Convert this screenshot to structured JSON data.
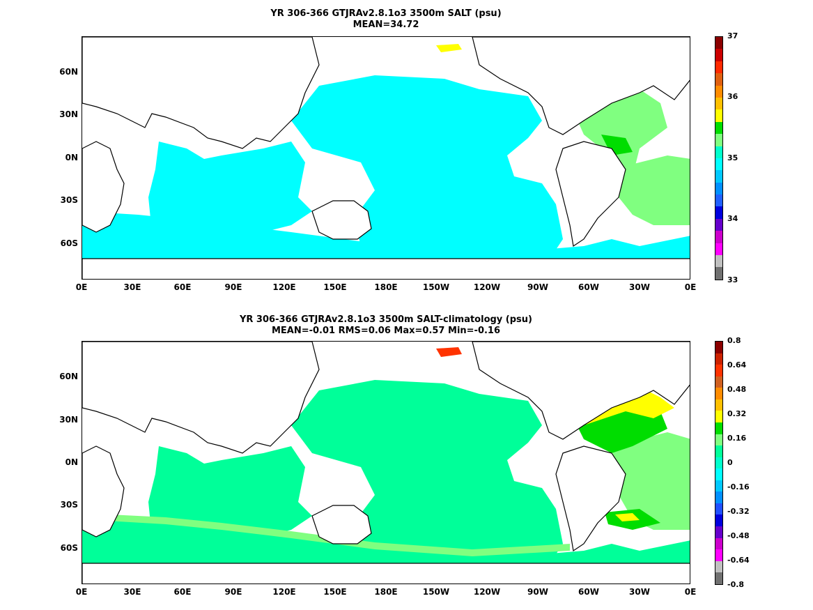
{
  "panels": [
    {
      "title_line1": "YR 306-366 GTJRAv2.8.1o3 3500m SALT (psu)",
      "title_line2": "MEAN=34.72",
      "lat_ticks": [
        "60N",
        "30N",
        "0N",
        "30S",
        "60S"
      ],
      "lon_ticks": [
        "0E",
        "30E",
        "60E",
        "90E",
        "120E",
        "150E",
        "180E",
        "150W",
        "120W",
        "90W",
        "60W",
        "30W",
        "0E"
      ],
      "colorbar": {
        "labels": [
          "37",
          "36",
          "35",
          "34",
          "33"
        ],
        "colors": [
          "#8b0000",
          "#cc0000",
          "#ff2a00",
          "#e06010",
          "#ff8c00",
          "#ffc000",
          "#ffff00",
          "#00dd00",
          "#80ff80",
          "#00ffcc",
          "#00ffff",
          "#00c8ff",
          "#0090ff",
          "#2060ff",
          "#0000dd",
          "#6600cc",
          "#cc00cc",
          "#ff00ff",
          "#c0c0c0",
          "#707070"
        ]
      },
      "fields": {
        "dominant_color": "#00ffff",
        "north_atlantic_color": "#80ff80",
        "green_patch_color": "#00dd00",
        "yellow_patch_color": "#ffff00"
      }
    },
    {
      "title_line1": "YR 306-366 GTJRAv2.8.1o3 3500m SALT-climatology (psu)",
      "title_line2": "MEAN=-0.01   RMS=0.06   Max=0.57   Min=-0.16",
      "lat_ticks": [
        "60N",
        "30N",
        "0N",
        "30S",
        "60S"
      ],
      "lon_ticks": [
        "0E",
        "30E",
        "60E",
        "90E",
        "120E",
        "150E",
        "180E",
        "150W",
        "120W",
        "90W",
        "60W",
        "30W",
        "0E"
      ],
      "colorbar": {
        "labels": [
          "0.8",
          "0.64",
          "0.48",
          "0.32",
          "0.16",
          "0",
          "-0.16",
          "-0.32",
          "-0.48",
          "-0.64",
          "-0.8"
        ],
        "colors": [
          "#8b0000",
          "#cc2200",
          "#ff3300",
          "#d06020",
          "#ff8c00",
          "#ffc000",
          "#ffff00",
          "#00dd00",
          "#80ff80",
          "#00ff99",
          "#00ffcc",
          "#00ffff",
          "#00c8ff",
          "#0090ff",
          "#2050ff",
          "#0000dd",
          "#6600cc",
          "#cc00cc",
          "#ff00ff",
          "#c0c0c0",
          "#707070"
        ]
      },
      "fields": {
        "dominant_color": "#00ff99",
        "north_atlantic_color": "#ffff00",
        "green_patch_color": "#00dd00",
        "light_green_color": "#80ff80"
      }
    }
  ]
}
